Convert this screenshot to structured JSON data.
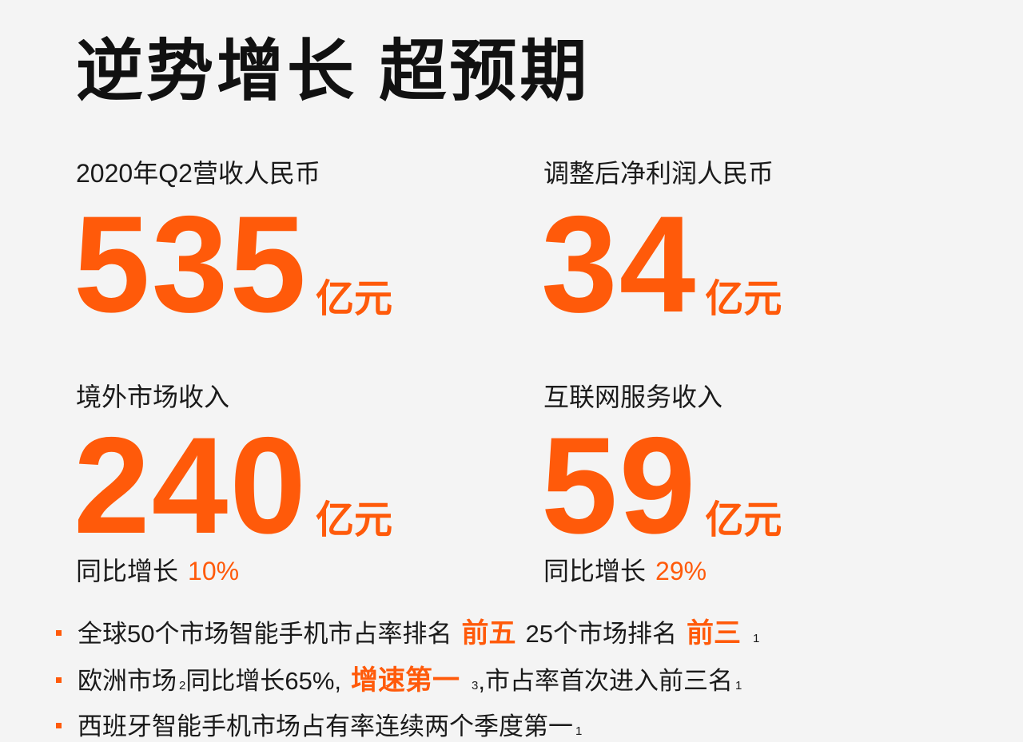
{
  "title": "逆势增长 超预期",
  "accent_color": "#ff5a0a",
  "metrics": [
    {
      "label": "2020年Q2营收人民币",
      "value": "535",
      "unit": "亿元"
    },
    {
      "label": "调整后净利润人民币",
      "value": "34",
      "unit": "亿元"
    },
    {
      "label": "境外市场收入",
      "value": "240",
      "unit": "亿元",
      "growth_label": "同比增长",
      "growth": "10%"
    },
    {
      "label": "互联网服务收入",
      "value": "59",
      "unit": "亿元",
      "growth_label": "同比增长",
      "growth": "29%"
    }
  ],
  "bullets": [
    {
      "text1": "全球50个市场智能手机市占率排名",
      "hl1": "前五",
      "text2": "25个市场排名",
      "hl2": "前三",
      "sup": "1"
    },
    {
      "text1": "欧洲市场",
      "sup1": "2",
      "text2": "同比增长65%,",
      "hl": "增速第一",
      "sup2": "3",
      "text3": ",市占率首次进入前三名",
      "sup3": "1"
    },
    {
      "text1": "西班牙智能手机市场占有率连续两个季度第一",
      "sup": "1"
    }
  ]
}
